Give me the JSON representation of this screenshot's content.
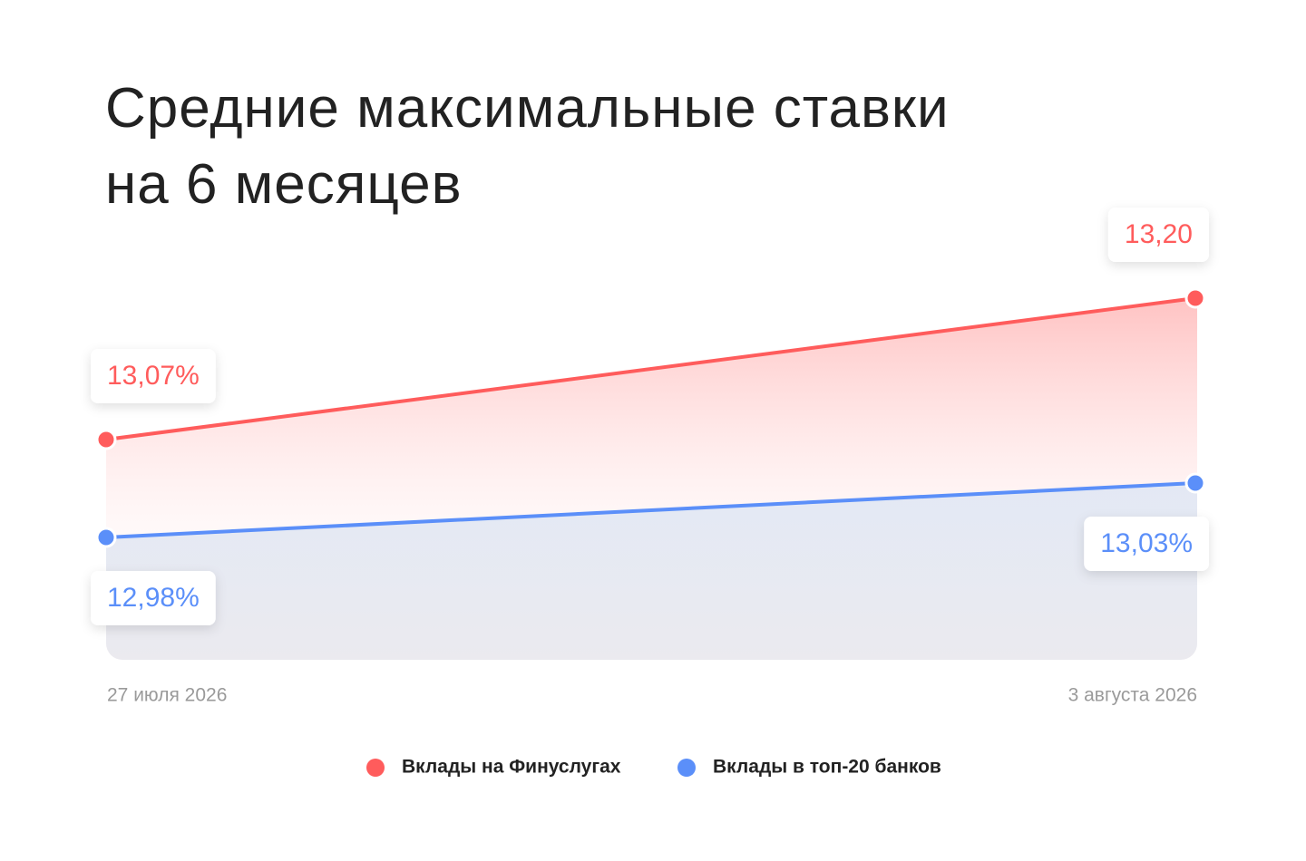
{
  "chart_data": {
    "type": "area-line",
    "title": "Средние максимальные ставки\nна 6 месяцев",
    "categories": [
      "27 июля 2026",
      "3 августа 2026"
    ],
    "series": [
      {
        "name": "Вклады на Финуслугах",
        "color": "#ff5c5c",
        "values": [
          13.07,
          13.2
        ],
        "value_labels": [
          "13,07%",
          "13,20"
        ]
      },
      {
        "name": "Вклады в топ-20 банков",
        "color": "#5b8ff9",
        "values": [
          12.98,
          13.03
        ],
        "value_labels": [
          "12,98%",
          "13,03%"
        ]
      }
    ]
  }
}
